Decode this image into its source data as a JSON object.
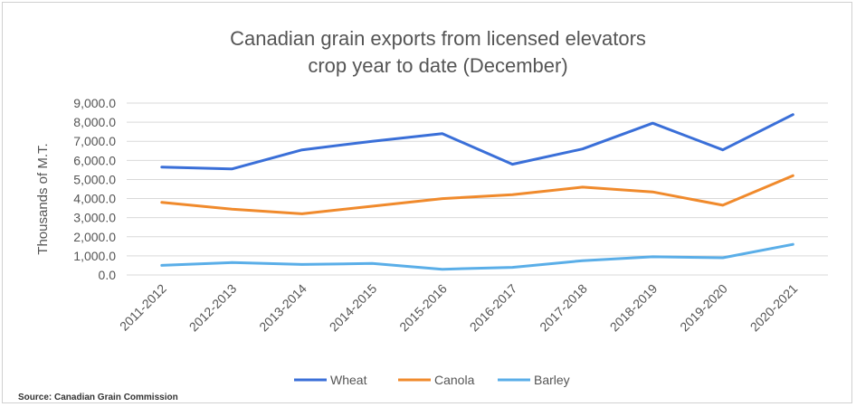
{
  "chart_data": {
    "type": "line",
    "title_lines": [
      "Canadian grain exports from licensed elevators",
      "crop year to date (December)"
    ],
    "xlabel": "",
    "ylabel": "Thousands of M.T.",
    "ylim": [
      0,
      9000
    ],
    "yticks": [
      0,
      1000,
      2000,
      3000,
      4000,
      5000,
      6000,
      7000,
      8000,
      9000
    ],
    "ytick_labels": [
      "0.0",
      "1,000.0",
      "2,000.0",
      "3,000.0",
      "4,000.0",
      "5,000.0",
      "6,000.0",
      "7,000.0",
      "8,000.0",
      "9,000.0"
    ],
    "categories": [
      "2011-2012",
      "2012-2013",
      "2013-2014",
      "2014-2015",
      "2015-2016",
      "2016-2017",
      "2017-2018",
      "2018-2019",
      "2019-2020",
      "2020-2021"
    ],
    "grid": true,
    "legend_position": "bottom",
    "series": [
      {
        "name": "Wheat",
        "color": "#3a6fd8",
        "values": [
          5650,
          5550,
          6550,
          7000,
          7400,
          5800,
          6600,
          7950,
          6550,
          8400
        ]
      },
      {
        "name": "Canola",
        "color": "#f08a2c",
        "values": [
          3800,
          3450,
          3200,
          3600,
          4000,
          4200,
          4600,
          4350,
          3650,
          5200
        ]
      },
      {
        "name": "Barley",
        "color": "#5aaee8",
        "values": [
          500,
          650,
          550,
          600,
          300,
          400,
          750,
          950,
          900,
          1600
        ]
      }
    ]
  },
  "source": "Source: Canadian Grain Commission"
}
